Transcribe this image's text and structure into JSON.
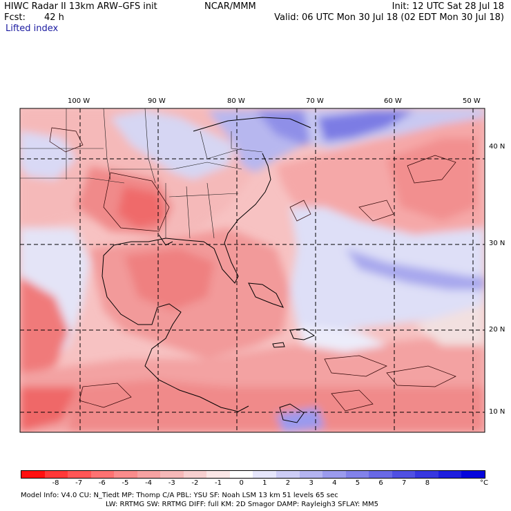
{
  "header": {
    "title": "HIWC Radar II 13km ARW–GFS init",
    "org": "NCAR/MMM",
    "init": "Init: 12 UTC Sat 28 Jul 18",
    "fcst_label": "Fcst:",
    "fcst_value": "42 h",
    "valid": "Valid: 06 UTC Mon 30 Jul 18 (02 EDT Mon 30 Jul 18)",
    "field": "Lifted index"
  },
  "lon_labels": [
    "100 W",
    "90 W",
    "80 W",
    "70 W",
    "60 W",
    "50 W"
  ],
  "lat_labels": [
    "40 N",
    "30 N",
    "20 N",
    "10 N"
  ],
  "colorbar": {
    "colors": [
      "#ff1010",
      "#ff3838",
      "#ff5656",
      "#fd7272",
      "#fa8c8c",
      "#f7a2a2",
      "#f5b8b8",
      "#f7cfcf",
      "#fbe6e6",
      "#ffffff",
      "#e6e6fb",
      "#cdcdf6",
      "#b4b4f1",
      "#9b9bee",
      "#8282ea",
      "#6969e6",
      "#5050e3",
      "#3737e0",
      "#1e1ede",
      "#0505dc"
    ],
    "labels": [
      "-8",
      "-7",
      "-6",
      "-5",
      "-4",
      "-3",
      "-2",
      "-1",
      "0",
      "1",
      "2",
      "3",
      "4",
      "5",
      "6",
      "7",
      "8"
    ],
    "unit": "°C"
  },
  "footer": {
    "line1": "Model Info: V4.0     CU: N_Tiedt  MP: Thomp C/A    PBL: YSU       SF: Noah LSM     13 km    51 levels   65 sec",
    "line2": "LW: RRTMG     SW: RRTMG  DIFF: full    KM: 2D Smagor DAMP: Rayleigh3   SFLAY: MM5"
  }
}
